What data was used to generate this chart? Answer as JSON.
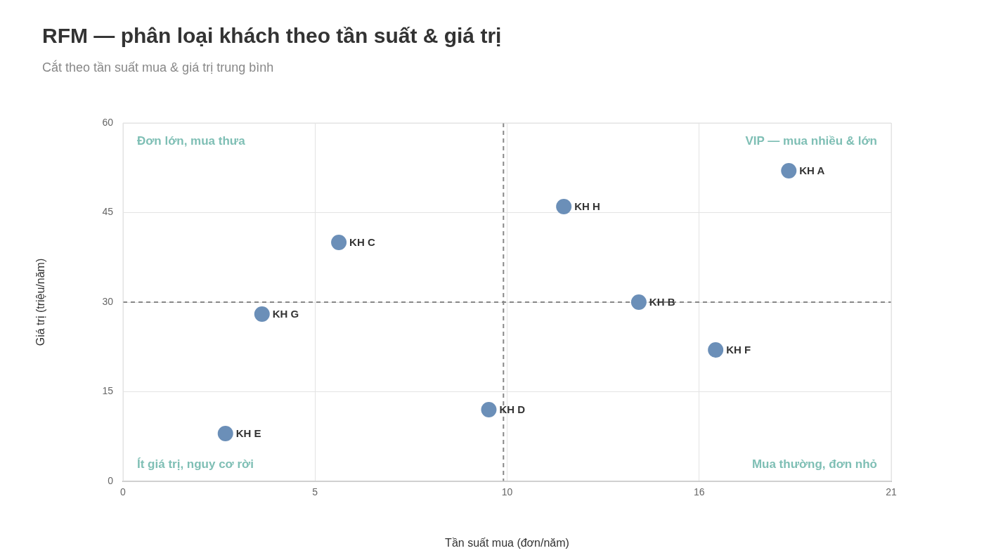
{
  "chart_data": {
    "type": "scatter",
    "title": "RFM — phân loại khách theo tần suất & giá trị",
    "subtitle": "Cắt theo tần suất mua & giá trị trung bình",
    "xlabel": "Tần suất mua (đơn/năm)",
    "ylabel": "Giá trị (triệu/năm)",
    "series": [
      {
        "color": "#6b8fb8",
        "x": [
          18.2,
          14.1,
          5.9,
          10.0,
          2.8,
          16.2,
          3.8,
          12.05
        ],
        "values": [
          52,
          30,
          40,
          12,
          8,
          22,
          28,
          46
        ]
      }
    ],
    "annotations": [
      {
        "text": "KH A",
        "x": 18.2,
        "y": 52
      },
      {
        "text": "KH B",
        "x": 14.1,
        "y": 30
      },
      {
        "text": "KH C",
        "x": 5.9,
        "y": 40
      },
      {
        "text": "KH D",
        "x": 10.0,
        "y": 12
      },
      {
        "text": "KH E",
        "x": 2.8,
        "y": 8
      },
      {
        "text": "KH F",
        "x": 16.2,
        "y": 22
      },
      {
        "text": "KH G",
        "x": 3.8,
        "y": 28
      },
      {
        "text": "KH H",
        "x": 12.05,
        "y": 46
      },
      "Đơn lớn, mua thưa",
      "VIP — mua nhiều & lớn",
      "Ít giá trị, nguy cơ rời",
      "Mua thường, đơn nhỏ"
    ],
    "xlim": [
      0,
      21
    ],
    "xticks": [
      0,
      {
        "value": 5.25,
        "label": "5"
      },
      {
        "value": 10.5,
        "label": "10"
      },
      {
        "value": 15.75,
        "label": "16"
      },
      21
    ],
    "ylim": [
      0,
      60
    ],
    "yticks": [
      0,
      15,
      30,
      45,
      60
    ],
    "ref_lines": [
      {
        "axis": "x",
        "value": 10.4,
        "color": "#888888",
        "line_style": "dashed"
      },
      {
        "axis": "y",
        "value": 30,
        "color": "#888888",
        "line_style": "dashed"
      }
    ],
    "grid": true,
    "legend": false,
    "marker": "circle"
  }
}
